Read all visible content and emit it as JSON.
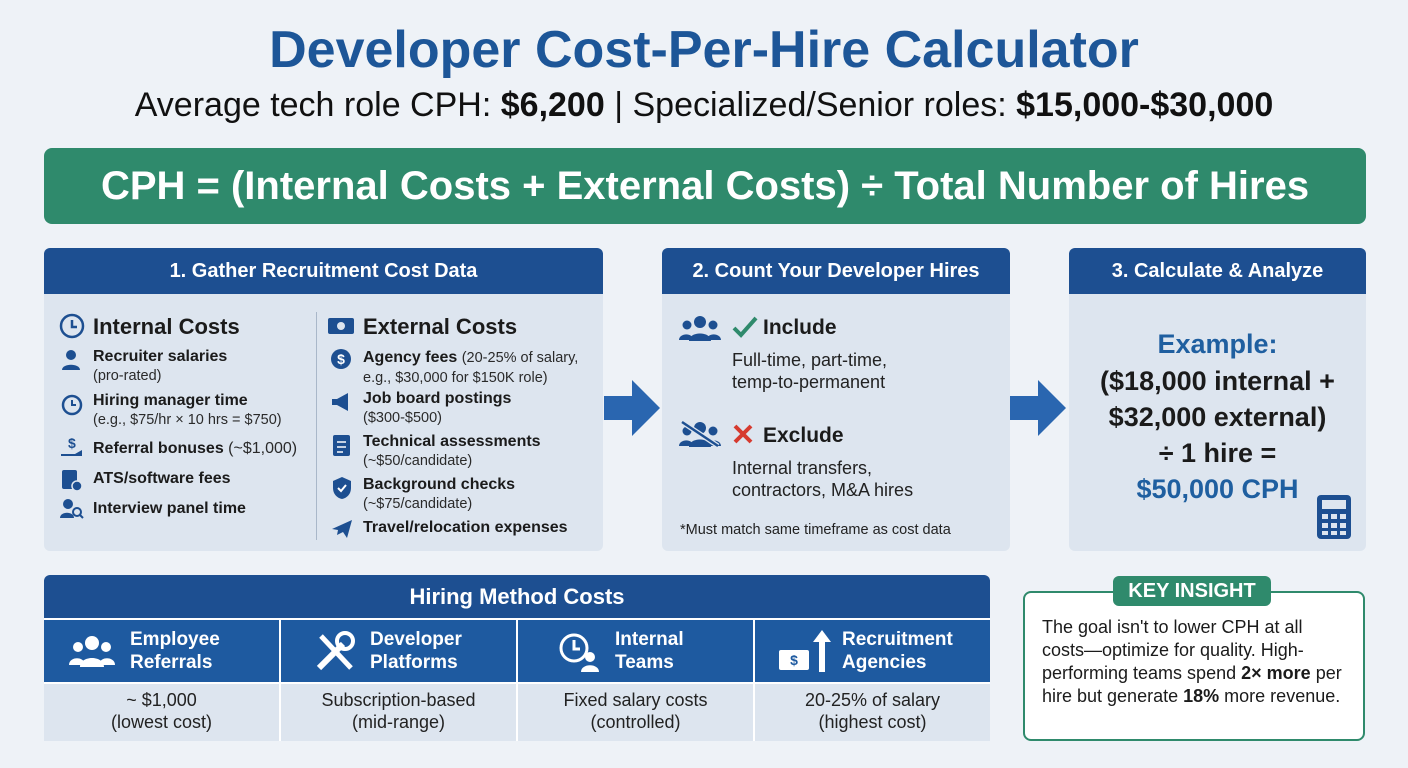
{
  "header": {
    "title": "Developer Cost-Per-Hire Calculator",
    "subtitle": {
      "lead": "Average tech role CPH:",
      "average": "$6,200",
      "separator": "| Specialized/Senior roles:",
      "range": "$15,000-$30,000"
    }
  },
  "formula": "CPH = (Internal Costs + External Costs) ÷ Total Number of Hires",
  "step1": {
    "title": "1. Gather Recruitment Cost Data",
    "internal": {
      "heading": "Internal Costs",
      "items": [
        {
          "label": "Recruiter salaries",
          "note": "(pro-rated)"
        },
        {
          "label": "Hiring manager time",
          "note": "(e.g., $75/hr × 10 hrs = $750)"
        },
        {
          "label": "Referral bonuses",
          "note": "(~$1,000)"
        },
        {
          "label": "ATS/software fees"
        },
        {
          "label": "Interview panel time"
        }
      ]
    },
    "external": {
      "heading": "External Costs",
      "items": [
        {
          "label": "Agency fees",
          "note": "(20-25% of salary, e.g., $30,000 for $150K role)"
        },
        {
          "label": "Job board postings",
          "note": "($300-$500)"
        },
        {
          "label": "Technical assessments",
          "note": "(~$50/candidate)"
        },
        {
          "label": "Background checks",
          "note": "(~$75/candidate)"
        },
        {
          "label": "Travel/relocation expenses"
        }
      ]
    }
  },
  "step2": {
    "title": "2. Count Your Developer Hires",
    "include": {
      "heading": "Include",
      "text": [
        "Full-time, part-time,",
        "temp-to-permanent"
      ]
    },
    "exclude": {
      "heading": "Exclude",
      "text": [
        "Internal transfers,",
        "contractors, M&A hires"
      ]
    },
    "footnote": "*Must match same timeframe as cost data"
  },
  "step3": {
    "title": "3. Calculate & Analyze",
    "example": [
      "Example:",
      "($18,000 internal +",
      "$32,000 external)",
      "÷ 1 hire =",
      "$50,000 CPH"
    ]
  },
  "methods": {
    "title": "Hiring Method Costs",
    "items": [
      {
        "name": [
          "Employee",
          "Referrals"
        ],
        "cost": [
          "~ $1,000",
          "(lowest cost)"
        ]
      },
      {
        "name": [
          "Developer",
          "Platforms"
        ],
        "cost": [
          "Subscription-based",
          "(mid-range)"
        ]
      },
      {
        "name": [
          "Internal",
          "Teams"
        ],
        "cost": [
          "Fixed salary costs",
          "(controlled)"
        ]
      },
      {
        "name": [
          "Recruitment",
          "Agencies"
        ],
        "cost": [
          "20-25% of salary",
          "(highest cost)"
        ]
      }
    ]
  },
  "insight": {
    "label": "KEY INSIGHT",
    "text": [
      "The goal isn't to lower CPH at all costs—optimize for quality. High-performing teams spend",
      "2× more",
      "per hire but generate",
      "18%",
      "more revenue."
    ]
  }
}
